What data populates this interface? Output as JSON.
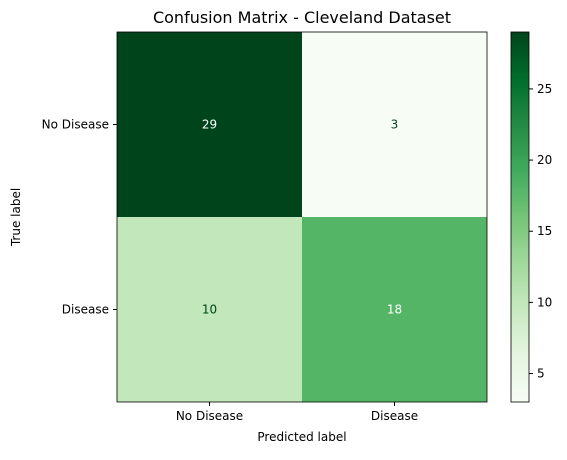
{
  "chart_data": {
    "type": "heatmap",
    "title": "Confusion Matrix - Cleveland Dataset",
    "xlabel": "Predicted label",
    "ylabel": "True label",
    "x_categories": [
      "No Disease",
      "Disease"
    ],
    "y_categories": [
      "No Disease",
      "Disease"
    ],
    "values": [
      [
        29,
        3
      ],
      [
        10,
        18
      ]
    ],
    "colormap": "Greens",
    "colorbar": {
      "range": [
        3,
        29
      ],
      "ticks": [
        5,
        10,
        15,
        20,
        25
      ]
    },
    "colors": {
      "low": "#f7fcf5",
      "high": "#00441b",
      "text_on_dark": "#ffffff",
      "text_on_light": "#00441b"
    }
  }
}
